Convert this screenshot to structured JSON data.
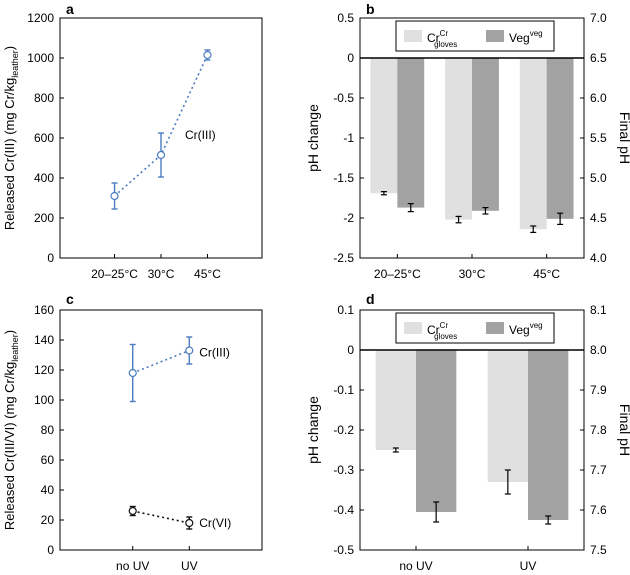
{
  "chart_data": [
    {
      "panel": "a",
      "type": "line",
      "categories": [
        "20–25°C",
        "30°C",
        "45°C"
      ],
      "ylabel_main": "Released Cr(III) (mg Cr/kg",
      "ylabel_sub": "leather",
      "ylabel_end": ")",
      "ylim": [
        0,
        1200
      ],
      "yticks": [
        0,
        200,
        400,
        600,
        800,
        1000,
        1200
      ],
      "series": [
        {
          "name": "Cr(III)",
          "color": "#4a7cc0",
          "values": [
            310,
            515,
            1015
          ],
          "err": [
            65,
            110,
            25
          ]
        }
      ]
    },
    {
      "panel": "b",
      "type": "bar",
      "categories": [
        "20–25°C",
        "30°C",
        "45°C"
      ],
      "ylabel": "pH change",
      "ylabel_right": "Final pH",
      "ylim": [
        -2.5,
        0.5
      ],
      "yticks": [
        -2.5,
        -2,
        -1.5,
        -1,
        -0.5,
        0,
        0.5
      ],
      "ytick_labels": [
        "-2.5",
        "-2",
        "-1.5",
        "-1",
        "-0.5",
        "0",
        "0.5"
      ],
      "right_ticks": [
        "4.0",
        "4.5",
        "5.0",
        "5.5",
        "6.0",
        "6.5",
        "7.0"
      ],
      "legend": [
        {
          "base": "Cr",
          "sup": "Cr",
          "sub": "gloves",
          "color": "#e0e0e0"
        },
        {
          "base": "Veg",
          "sup": "veg",
          "sub": "",
          "color": "#a2a2a2"
        }
      ],
      "series": [
        {
          "name": "Cr Cr gloves",
          "color": "#e0e0e0",
          "values": [
            -1.69,
            -2.02,
            -2.14
          ],
          "err": [
            0.02,
            0.04,
            0.04
          ]
        },
        {
          "name": "Veg veg",
          "color": "#a2a2a2",
          "values": [
            -1.87,
            -1.91,
            -2.01
          ],
          "err": [
            0.05,
            0.04,
            0.07
          ]
        }
      ]
    },
    {
      "panel": "c",
      "type": "line",
      "categories": [
        "no UV",
        "UV"
      ],
      "ylabel_main": "Released Cr(III/VI) (mg Cr/kg",
      "ylabel_sub": "leather",
      "ylabel_end": ")",
      "ylim": [
        0,
        160
      ],
      "yticks": [
        0,
        20,
        40,
        60,
        80,
        100,
        120,
        140,
        160
      ],
      "series": [
        {
          "name": "Cr(III)",
          "color": "#4a7cc0",
          "values": [
            118,
            133
          ],
          "err": [
            19,
            9
          ]
        },
        {
          "name": "Cr(VI)",
          "color": "#111111",
          "values": [
            26,
            18
          ],
          "err": [
            3,
            4
          ]
        }
      ]
    },
    {
      "panel": "d",
      "type": "bar",
      "categories": [
        "no UV",
        "UV"
      ],
      "ylabel": "pH change",
      "ylabel_right": "Final pH",
      "ylim": [
        -0.5,
        0.1
      ],
      "yticks": [
        -0.5,
        -0.4,
        -0.3,
        -0.2,
        -0.1,
        0,
        0.1
      ],
      "ytick_labels": [
        "-0.5",
        "-0.4",
        "-0.3",
        "-0.2",
        "-0.1",
        "0",
        "0.1"
      ],
      "right_ticks": [
        "7.5",
        "7.6",
        "7.7",
        "7.8",
        "7.9",
        "8.0",
        "8.1"
      ],
      "legend": [
        {
          "base": "Cr",
          "sup": "Cr",
          "sub": "gloves",
          "color": "#e0e0e0"
        },
        {
          "base": "Veg",
          "sup": "veg",
          "sub": "",
          "color": "#a2a2a2"
        }
      ],
      "series": [
        {
          "name": "Cr Cr gloves",
          "color": "#e0e0e0",
          "values": [
            -0.25,
            -0.33
          ],
          "err": [
            0.005,
            0.03
          ]
        },
        {
          "name": "Veg veg",
          "color": "#a2a2a2",
          "values": [
            -0.405,
            -0.425
          ],
          "err": [
            0.025,
            0.01
          ]
        }
      ]
    }
  ]
}
